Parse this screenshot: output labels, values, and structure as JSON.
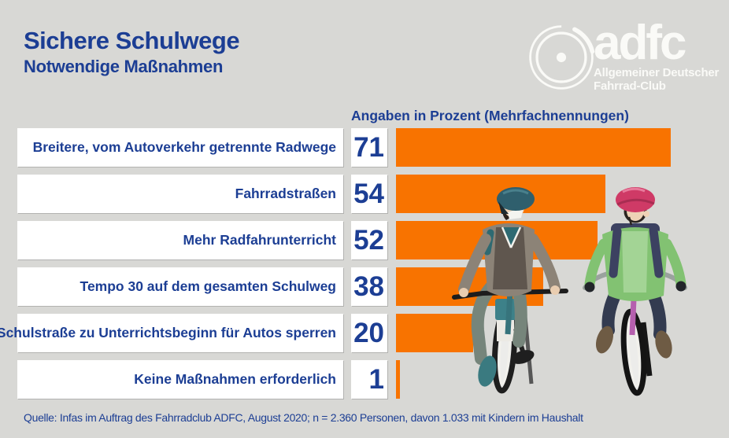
{
  "header": {
    "title": "Sichere Schulwege",
    "subtitle": "Notwendige Maßnahmen"
  },
  "logo": {
    "wordmark": "adfc",
    "line1": "Allgemeiner Deutscher",
    "line2": "Fahrrad-Club",
    "icon": "bicycle-wheel-icon"
  },
  "chart_data": {
    "type": "bar",
    "orientation": "horizontal",
    "value_axis_label": "Angaben in Prozent (Mehrfachnennungen)",
    "categories": [
      "Breitere, vom Autoverkehr getrennte Radwege",
      "Fahrradstraßen",
      "Mehr Radfahrunterricht",
      "Tempo 30 auf dem gesamten Schulweg",
      "Schulstraße zu Unterrichtsbeginn für Autos sperren",
      "Keine Maßnahmen erforderlich"
    ],
    "values": [
      71,
      54,
      52,
      38,
      20,
      1
    ],
    "unit": "%",
    "xlim": [
      0,
      86
    ],
    "grid": false,
    "legend": false,
    "bar_color": "#f87300",
    "text_color": "#1c3e94"
  },
  "illustration": {
    "name": "two-children-on-bicycles",
    "description": "Zwei Kinder mit Fahrradhelmen auf Fahrrädern"
  },
  "footer": {
    "source": "Quelle: Infas im Auftrag des Fahrradclub ADFC, August 2020; n = 2.360 Personen, davon 1.033 mit Kindern im Haushalt"
  },
  "colors": {
    "background": "#d8d8d5",
    "bar": "#f87300",
    "text_blue": "#1c3e94",
    "box_white": "#ffffff",
    "logo_white": "#fafaf7"
  }
}
